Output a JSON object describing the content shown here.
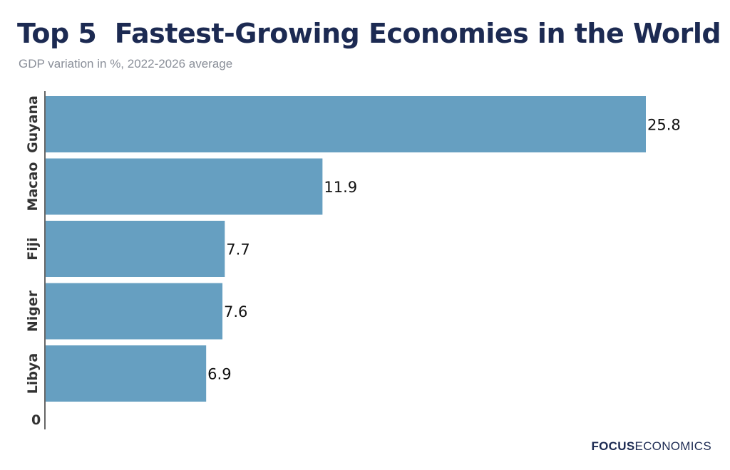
{
  "title": "Top 5  Fastest-Growing Economies in the World",
  "subtitle": "GDP variation in %, 2022-2026 average",
  "logo": {
    "bold": "FOCUS",
    "light": "ECONOMICS"
  },
  "colors": {
    "bar": "#669fc1",
    "title": "#1c2a52",
    "subtitle": "#8a8f99",
    "axis": "#333333"
  },
  "chart_data": {
    "type": "bar",
    "orientation": "horizontal",
    "categories": [
      "Guyana",
      "Macao",
      "Fiji",
      "Niger",
      "Libya"
    ],
    "values": [
      25.8,
      11.9,
      7.7,
      7.6,
      6.9
    ],
    "value_labels": [
      "25.8",
      "11.9",
      "7.7",
      "7.6",
      "6.9"
    ],
    "axis_origin_label": "0",
    "title": "Top 5  Fastest-Growing Economies in the World",
    "subtitle": "GDP variation in %, 2022-2026 average",
    "xlim": [
      0,
      26.5
    ],
    "grid": false,
    "legend": "none"
  }
}
